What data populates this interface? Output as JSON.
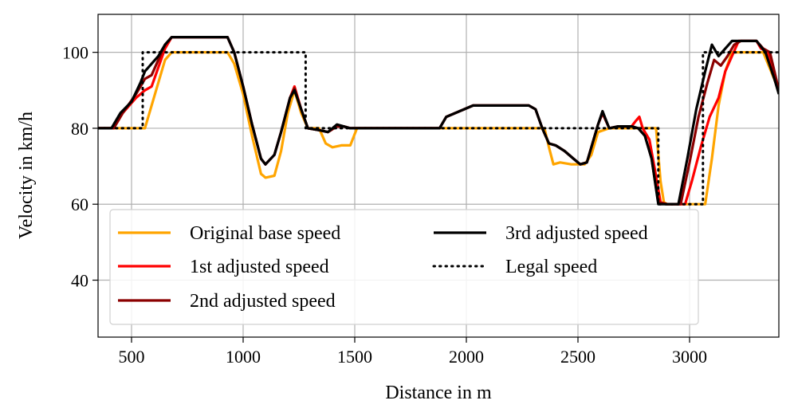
{
  "chart_data": {
    "type": "line",
    "title": "",
    "xlabel": "Distance in m",
    "ylabel": "Velocity in km/h",
    "xlim": [
      350,
      3400
    ],
    "ylim": [
      25,
      110
    ],
    "xticks": [
      500,
      1000,
      1500,
      2000,
      2500,
      3000
    ],
    "yticks": [
      40,
      60,
      80,
      100
    ],
    "grid": true,
    "legend_position": "lower-left",
    "series": [
      {
        "name": "Original base speed",
        "color": "#FFA500",
        "style": "solid",
        "points": [
          [
            350,
            80
          ],
          [
            560,
            80
          ],
          [
            600,
            88
          ],
          [
            650,
            98
          ],
          [
            680,
            100
          ],
          [
            930,
            100
          ],
          [
            960,
            97
          ],
          [
            1000,
            89
          ],
          [
            1040,
            78
          ],
          [
            1080,
            68
          ],
          [
            1100,
            67
          ],
          [
            1140,
            67.5
          ],
          [
            1170,
            74
          ],
          [
            1200,
            84
          ],
          [
            1230,
            90
          ],
          [
            1260,
            84
          ],
          [
            1290,
            80
          ],
          [
            1340,
            80
          ],
          [
            1370,
            76
          ],
          [
            1400,
            75
          ],
          [
            1440,
            75.5
          ],
          [
            1480,
            75.5
          ],
          [
            1510,
            80
          ],
          [
            2350,
            80
          ],
          [
            2370,
            75
          ],
          [
            2390,
            70.5
          ],
          [
            2420,
            71
          ],
          [
            2470,
            70.5
          ],
          [
            2530,
            70.5
          ],
          [
            2560,
            73
          ],
          [
            2590,
            79
          ],
          [
            2640,
            80
          ],
          [
            2850,
            80
          ],
          [
            2870,
            66
          ],
          [
            2885,
            60.5
          ],
          [
            2900,
            60
          ],
          [
            3070,
            60
          ],
          [
            3100,
            72
          ],
          [
            3130,
            86
          ],
          [
            3160,
            95
          ],
          [
            3190,
            100
          ],
          [
            3330,
            100
          ],
          [
            3400,
            90
          ]
        ]
      },
      {
        "name": "1st adjusted speed",
        "color": "#FF0000",
        "style": "solid",
        "points": [
          [
            350,
            80
          ],
          [
            420,
            80
          ],
          [
            460,
            84
          ],
          [
            520,
            88
          ],
          [
            560,
            90
          ],
          [
            590,
            91
          ],
          [
            620,
            96
          ],
          [
            650,
            101
          ],
          [
            680,
            104
          ],
          [
            720,
            104
          ],
          [
            930,
            104
          ],
          [
            960,
            100
          ],
          [
            1000,
            91
          ],
          [
            1040,
            81
          ],
          [
            1080,
            72
          ],
          [
            1100,
            70.5
          ],
          [
            1140,
            73
          ],
          [
            1170,
            79
          ],
          [
            1210,
            88
          ],
          [
            1230,
            91
          ],
          [
            1260,
            85
          ],
          [
            1290,
            80
          ],
          [
            1340,
            79.5
          ],
          [
            1380,
            79
          ],
          [
            1420,
            80.5
          ],
          [
            1450,
            80.5
          ],
          [
            1480,
            80
          ],
          [
            1880,
            80
          ],
          [
            1910,
            83
          ],
          [
            1950,
            84
          ],
          [
            1990,
            85
          ],
          [
            2030,
            86
          ],
          [
            2280,
            86
          ],
          [
            2310,
            85
          ],
          [
            2340,
            80
          ],
          [
            2370,
            76
          ],
          [
            2400,
            75.5
          ],
          [
            2440,
            74
          ],
          [
            2480,
            72
          ],
          [
            2510,
            70.5
          ],
          [
            2540,
            71
          ],
          [
            2560,
            75
          ],
          [
            2590,
            81
          ],
          [
            2610,
            84
          ],
          [
            2640,
            80
          ],
          [
            2680,
            80.5
          ],
          [
            2740,
            80.5
          ],
          [
            2760,
            82
          ],
          [
            2775,
            83
          ],
          [
            2790,
            80
          ],
          [
            2820,
            77
          ],
          [
            2845,
            69
          ],
          [
            2870,
            60.5
          ],
          [
            2900,
            60
          ],
          [
            2980,
            60
          ],
          [
            3010,
            66
          ],
          [
            3050,
            75
          ],
          [
            3090,
            83
          ],
          [
            3130,
            88
          ],
          [
            3160,
            95
          ],
          [
            3190,
            99
          ],
          [
            3220,
            103
          ],
          [
            3300,
            103
          ],
          [
            3320,
            101
          ],
          [
            3350,
            100
          ],
          [
            3400,
            90
          ]
        ]
      },
      {
        "name": "2nd adjusted speed",
        "color": "#8B0000",
        "style": "solid",
        "points": [
          [
            350,
            80
          ],
          [
            420,
            80
          ],
          [
            460,
            84
          ],
          [
            520,
            89
          ],
          [
            560,
            93
          ],
          [
            590,
            94
          ],
          [
            620,
            98
          ],
          [
            650,
            102
          ],
          [
            680,
            104
          ],
          [
            720,
            104
          ],
          [
            930,
            104
          ],
          [
            960,
            100
          ],
          [
            1000,
            91
          ],
          [
            1040,
            81
          ],
          [
            1080,
            72
          ],
          [
            1100,
            70.5
          ],
          [
            1140,
            73
          ],
          [
            1170,
            79
          ],
          [
            1210,
            88
          ],
          [
            1230,
            90.5
          ],
          [
            1260,
            85
          ],
          [
            1290,
            80
          ],
          [
            1340,
            79.5
          ],
          [
            1380,
            79
          ],
          [
            1420,
            80.5
          ],
          [
            1450,
            80.5
          ],
          [
            1480,
            80
          ],
          [
            1880,
            80
          ],
          [
            1910,
            83
          ],
          [
            1950,
            84
          ],
          [
            1990,
            85
          ],
          [
            2030,
            86
          ],
          [
            2280,
            86
          ],
          [
            2310,
            85
          ],
          [
            2340,
            80
          ],
          [
            2370,
            76
          ],
          [
            2400,
            75.5
          ],
          [
            2440,
            74
          ],
          [
            2480,
            72
          ],
          [
            2510,
            70.5
          ],
          [
            2540,
            71
          ],
          [
            2560,
            75
          ],
          [
            2590,
            81
          ],
          [
            2610,
            84
          ],
          [
            2640,
            80
          ],
          [
            2680,
            80.5
          ],
          [
            2740,
            80.5
          ],
          [
            2770,
            80
          ],
          [
            2800,
            78
          ],
          [
            2830,
            72
          ],
          [
            2860,
            60.5
          ],
          [
            2900,
            60
          ],
          [
            2960,
            60
          ],
          [
            3000,
            71
          ],
          [
            3040,
            83
          ],
          [
            3080,
            92
          ],
          [
            3110,
            98
          ],
          [
            3140,
            96.5
          ],
          [
            3170,
            99
          ],
          [
            3200,
            102
          ],
          [
            3230,
            103
          ],
          [
            3300,
            103
          ],
          [
            3330,
            101
          ],
          [
            3360,
            100
          ],
          [
            3400,
            90
          ]
        ]
      },
      {
        "name": "3rd adjusted speed",
        "color": "#000000",
        "style": "solid",
        "points": [
          [
            350,
            80
          ],
          [
            410,
            80
          ],
          [
            450,
            84
          ],
          [
            500,
            87
          ],
          [
            540,
            92
          ],
          [
            560,
            95
          ],
          [
            590,
            97
          ],
          [
            620,
            99
          ],
          [
            650,
            102
          ],
          [
            680,
            104
          ],
          [
            720,
            104
          ],
          [
            930,
            104
          ],
          [
            960,
            100
          ],
          [
            1000,
            91
          ],
          [
            1040,
            81
          ],
          [
            1080,
            72
          ],
          [
            1100,
            70.5
          ],
          [
            1140,
            73
          ],
          [
            1170,
            79
          ],
          [
            1210,
            88
          ],
          [
            1230,
            90
          ],
          [
            1260,
            85
          ],
          [
            1290,
            80
          ],
          [
            1340,
            79.5
          ],
          [
            1380,
            79
          ],
          [
            1420,
            81
          ],
          [
            1450,
            80.5
          ],
          [
            1480,
            80
          ],
          [
            1880,
            80
          ],
          [
            1910,
            83
          ],
          [
            1950,
            84
          ],
          [
            1990,
            85
          ],
          [
            2030,
            86
          ],
          [
            2280,
            86
          ],
          [
            2310,
            85
          ],
          [
            2340,
            80
          ],
          [
            2370,
            76
          ],
          [
            2400,
            75.5
          ],
          [
            2440,
            74
          ],
          [
            2480,
            72
          ],
          [
            2510,
            70.5
          ],
          [
            2540,
            71
          ],
          [
            2560,
            75
          ],
          [
            2590,
            81
          ],
          [
            2610,
            84.5
          ],
          [
            2640,
            80
          ],
          [
            2680,
            80.5
          ],
          [
            2740,
            80.5
          ],
          [
            2770,
            80
          ],
          [
            2800,
            78
          ],
          [
            2830,
            72
          ],
          [
            2860,
            60
          ],
          [
            2900,
            60
          ],
          [
            2950,
            60
          ],
          [
            2990,
            72
          ],
          [
            3030,
            85
          ],
          [
            3070,
            95
          ],
          [
            3100,
            102
          ],
          [
            3130,
            99
          ],
          [
            3160,
            101
          ],
          [
            3190,
            103
          ],
          [
            3300,
            103
          ],
          [
            3340,
            100
          ],
          [
            3380,
            93
          ],
          [
            3400,
            89
          ]
        ]
      },
      {
        "name": "Legal speed",
        "color": "#000000",
        "style": "dotted",
        "points": [
          [
            350,
            80
          ],
          [
            550,
            80
          ],
          [
            550,
            100
          ],
          [
            1280,
            100
          ],
          [
            1280,
            80
          ],
          [
            2860,
            80
          ],
          [
            2860,
            60
          ],
          [
            3060,
            60
          ],
          [
            3060,
            100
          ],
          [
            3400,
            100
          ]
        ]
      }
    ]
  }
}
